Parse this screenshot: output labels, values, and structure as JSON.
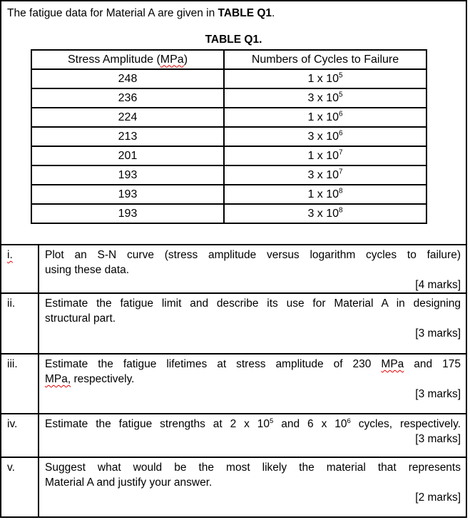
{
  "colors": {
    "text": "#000000",
    "border": "#000000",
    "background": "#ffffff",
    "spellcheck_squiggle": "#e60000"
  },
  "intro": {
    "segments": [
      {
        "text": "The fatigue data for Material A are given in "
      },
      {
        "text": "TABLE Q1",
        "style": "bold"
      },
      {
        "text": "."
      }
    ]
  },
  "table_title": {
    "segments": [
      {
        "text": "TABLE Q1.",
        "style": "bold"
      }
    ]
  },
  "data_table": {
    "col1_header_segments": [
      {
        "text": "Stress Amplitude ("
      },
      {
        "text": "MPa",
        "style": "squiggle"
      },
      {
        "text": ")"
      }
    ],
    "col2_header": "Numbers of Cycles to Failure",
    "rows": [
      {
        "stress": "248",
        "cycles_segments": [
          {
            "text": "1 x 10"
          },
          {
            "text": "5",
            "style": "sup"
          }
        ]
      },
      {
        "stress": "236",
        "cycles_segments": [
          {
            "text": "3 x 10"
          },
          {
            "text": "5",
            "style": "sup"
          }
        ]
      },
      {
        "stress": "224",
        "cycles_segments": [
          {
            "text": "1 x 10"
          },
          {
            "text": "6",
            "style": "sup"
          }
        ]
      },
      {
        "stress": "213",
        "cycles_segments": [
          {
            "text": "3 x 10"
          },
          {
            "text": "6",
            "style": "sup"
          }
        ]
      },
      {
        "stress": "201",
        "cycles_segments": [
          {
            "text": "1 x 10"
          },
          {
            "text": "7",
            "style": "sup"
          }
        ]
      },
      {
        "stress": "193",
        "cycles_segments": [
          {
            "text": "3 x 10"
          },
          {
            "text": "7",
            "style": "sup"
          }
        ]
      },
      {
        "stress": "193",
        "cycles_segments": [
          {
            "text": "1 x 10"
          },
          {
            "text": "8",
            "style": "sup"
          }
        ]
      },
      {
        "stress": "193",
        "cycles_segments": [
          {
            "text": "3 x 10"
          },
          {
            "text": "8",
            "style": "sup"
          }
        ]
      }
    ]
  },
  "questions": [
    {
      "numeral_segments": [
        {
          "text": "i.",
          "style": "squiggle"
        }
      ],
      "line1_segments": [
        {
          "text": "Plot an S-N curve (stress amplitude versus logarithm cycles to failure)"
        }
      ],
      "line2_segments": [
        {
          "text": "using these data."
        }
      ],
      "marks": "[4 marks]"
    },
    {
      "numeral_segments": [
        {
          "text": "ii."
        }
      ],
      "line1_segments": [
        {
          "text": "Estimate the fatigue limit and describe its use for Material A in designing"
        }
      ],
      "line2_segments": [
        {
          "text": "structural part."
        }
      ],
      "marks": "[3 marks]"
    },
    {
      "numeral_segments": [
        {
          "text": "iii."
        }
      ],
      "line1_segments": [
        {
          "text": "Estimate the fatigue lifetimes at stress amplitude of 230 "
        },
        {
          "text": "MPa",
          "style": "squiggle"
        },
        {
          "text": " and 175"
        }
      ],
      "line2_segments": [
        {
          "text": "MPa,",
          "style": "squiggle"
        },
        {
          "text": " respectively."
        }
      ],
      "marks": "[3 marks]"
    },
    {
      "numeral_segments": [
        {
          "text": "iv."
        }
      ],
      "line1_segments": [
        {
          "text": "Estimate the fatigue strengths at 2 x 10"
        },
        {
          "text": "5",
          "style": "sup"
        },
        {
          "text": " and 6 x 10"
        },
        {
          "text": "6",
          "style": "sup"
        },
        {
          "text": " cycles, respectively."
        }
      ],
      "line2_segments": null,
      "marks": "[3 marks]"
    },
    {
      "numeral_segments": [
        {
          "text": "v."
        }
      ],
      "line1_segments": [
        {
          "text": "Suggest what would be the most likely the material that represents"
        }
      ],
      "line2_segments": [
        {
          "text": "Material A and justify your answer."
        }
      ],
      "marks": "[2 marks]"
    }
  ]
}
